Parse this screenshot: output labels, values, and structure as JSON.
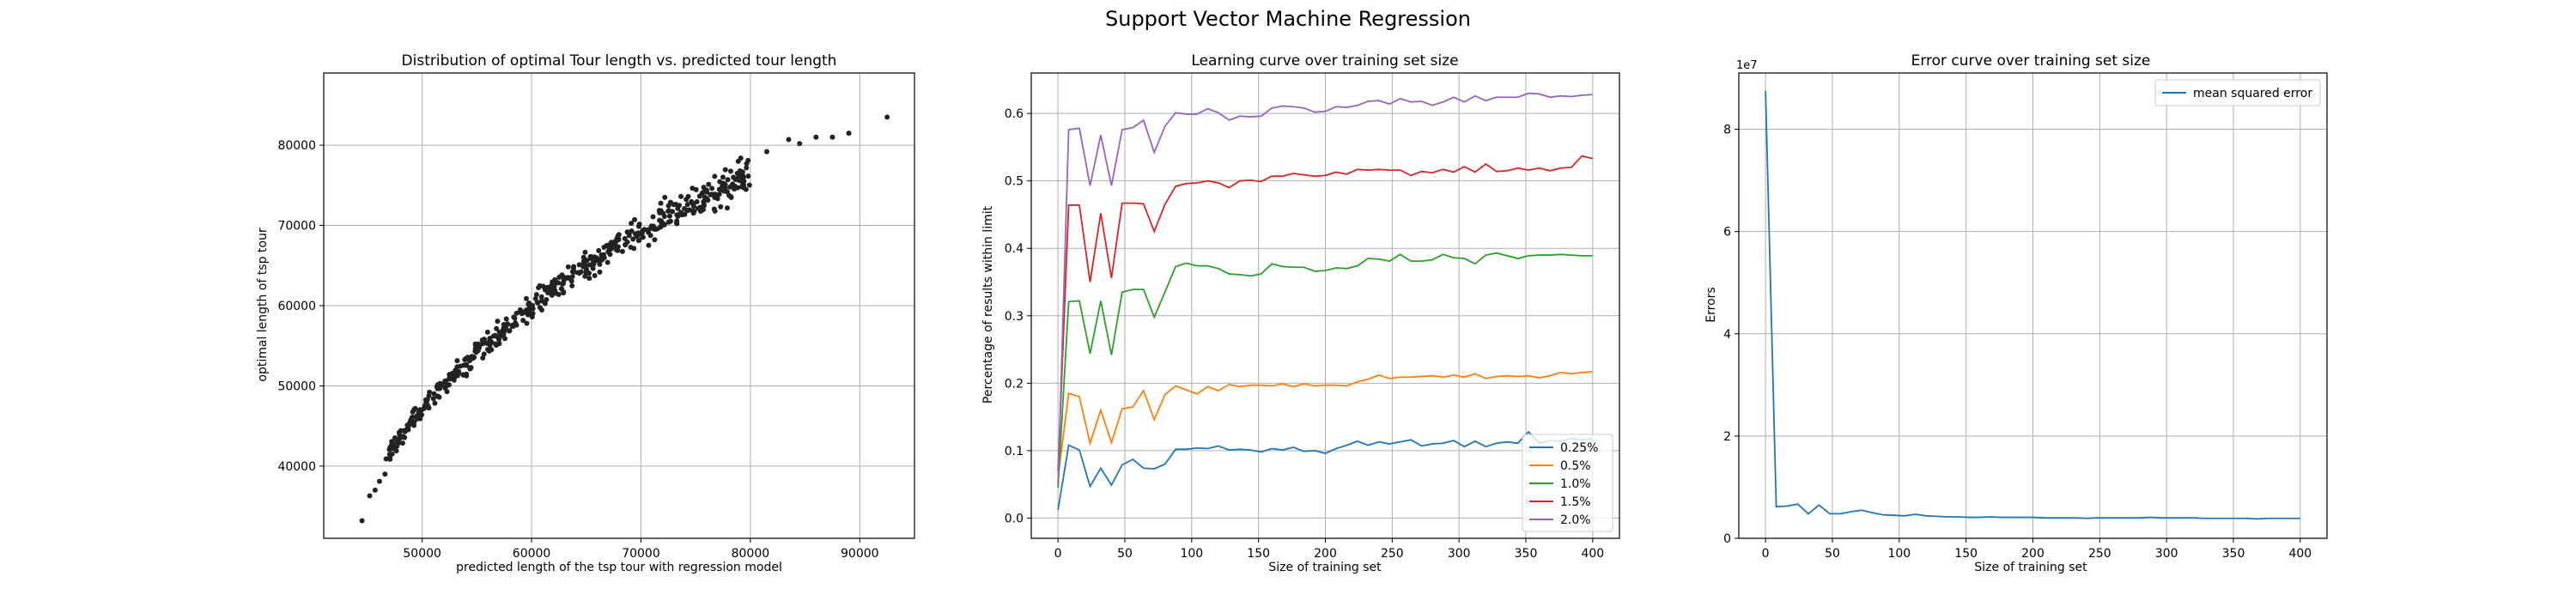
{
  "figure": {
    "title": "Support Vector Machine Regression"
  },
  "colors": {
    "series": [
      "#1f77b4",
      "#ff7f0e",
      "#2ca02c",
      "#d62728",
      "#9467bd"
    ],
    "scatter": "#222222",
    "grid": "#b0b0b0",
    "mse": "#1f77b4"
  },
  "chart_data": [
    {
      "type": "scatter",
      "title": "Distribution of optimal Tour length vs. predicted tour length",
      "xlabel": "predicted length of the tsp tour with regression model",
      "ylabel": "optimal length of tsp tour",
      "xlim": [
        41000,
        95000
      ],
      "ylim": [
        31000,
        89000
      ],
      "xticks": [
        50000,
        60000,
        70000,
        80000,
        90000
      ],
      "yticks": [
        40000,
        50000,
        60000,
        70000,
        80000
      ],
      "grid": true,
      "trend": {
        "x": [
          47000,
          49000,
          52000,
          55000,
          58000,
          60000,
          62000,
          64000,
          66000,
          68000,
          70000,
          72000,
          74000,
          76000,
          78000,
          80000,
          83000,
          86000
        ],
        "y": [
          41800,
          45500,
          50000,
          54000,
          57500,
          59800,
          62100,
          64000,
          65900,
          67500,
          69400,
          71000,
          72600,
          73800,
          75100,
          76300,
          78400,
          80300
        ]
      },
      "extra_points": [
        {
          "x": 44500,
          "y": 33200
        },
        {
          "x": 45200,
          "y": 36300
        },
        {
          "x": 45700,
          "y": 37000
        },
        {
          "x": 46100,
          "y": 38100
        },
        {
          "x": 46600,
          "y": 39000
        },
        {
          "x": 46700,
          "y": 40900
        },
        {
          "x": 81500,
          "y": 79200
        },
        {
          "x": 83500,
          "y": 80700
        },
        {
          "x": 84500,
          "y": 80200
        },
        {
          "x": 86000,
          "y": 81000
        },
        {
          "x": 87500,
          "y": 81000
        },
        {
          "x": 89000,
          "y": 81500
        },
        {
          "x": 92500,
          "y": 83500
        }
      ],
      "n_points": 520
    },
    {
      "type": "line",
      "title": "Learning curve over training set size",
      "xlabel": "Size of training set",
      "ylabel": "Percentage of results within limit",
      "xlim": [
        -20,
        420
      ],
      "ylim": [
        -0.03,
        0.66
      ],
      "xticks": [
        0,
        50,
        100,
        150,
        200,
        250,
        300,
        350,
        400
      ],
      "yticks": [
        0.0,
        0.1,
        0.2,
        0.3,
        0.4,
        0.5,
        0.6
      ],
      "ytick_labels": [
        "0.0",
        "0.1",
        "0.2",
        "0.3",
        "0.4",
        "0.5",
        "0.6"
      ],
      "grid": true,
      "legend": "lower-right",
      "x": [
        0,
        8,
        16,
        24,
        32,
        40,
        48,
        56,
        64,
        72,
        80,
        88,
        96,
        104,
        112,
        120,
        128,
        136,
        144,
        152,
        160,
        168,
        176,
        184,
        192,
        200,
        208,
        216,
        224,
        232,
        240,
        248,
        256,
        264,
        272,
        280,
        288,
        296,
        304,
        312,
        320,
        328,
        336,
        344,
        352,
        360,
        368,
        376,
        384,
        392,
        400
      ],
      "series": [
        {
          "name": "0.25%",
          "values": [
            0.012,
            0.108,
            0.101,
            0.047,
            0.074,
            0.049,
            0.079,
            0.087,
            0.074,
            0.073,
            0.08,
            0.102,
            0.102,
            0.104,
            0.103,
            0.107,
            0.101,
            0.102,
            0.101,
            0.098,
            0.103,
            0.101,
            0.105,
            0.099,
            0.1,
            0.096,
            0.103,
            0.108,
            0.114,
            0.108,
            0.113,
            0.11,
            0.113,
            0.116,
            0.107,
            0.11,
            0.111,
            0.115,
            0.106,
            0.114,
            0.106,
            0.111,
            0.113,
            0.111,
            0.128,
            0.111,
            0.115,
            0.114,
            0.118,
            0.116,
            0.118
          ]
        },
        {
          "name": "0.5%",
          "values": [
            0.06,
            0.185,
            0.18,
            0.111,
            0.16,
            0.112,
            0.162,
            0.165,
            0.189,
            0.146,
            0.183,
            0.196,
            0.19,
            0.184,
            0.195,
            0.189,
            0.198,
            0.195,
            0.197,
            0.197,
            0.196,
            0.199,
            0.195,
            0.199,
            0.196,
            0.197,
            0.197,
            0.196,
            0.202,
            0.206,
            0.212,
            0.207,
            0.209,
            0.209,
            0.21,
            0.211,
            0.209,
            0.212,
            0.209,
            0.214,
            0.207,
            0.21,
            0.211,
            0.21,
            0.211,
            0.208,
            0.211,
            0.216,
            0.214,
            0.216,
            0.217
          ]
        },
        {
          "name": "1.0%",
          "values": [
            0.045,
            0.321,
            0.322,
            0.244,
            0.322,
            0.242,
            0.335,
            0.339,
            0.339,
            0.298,
            0.335,
            0.373,
            0.378,
            0.374,
            0.374,
            0.37,
            0.362,
            0.361,
            0.359,
            0.362,
            0.377,
            0.373,
            0.372,
            0.372,
            0.366,
            0.367,
            0.371,
            0.37,
            0.374,
            0.385,
            0.384,
            0.381,
            0.391,
            0.381,
            0.381,
            0.383,
            0.391,
            0.386,
            0.385,
            0.377,
            0.39,
            0.393,
            0.389,
            0.385,
            0.389,
            0.39,
            0.39,
            0.391,
            0.39,
            0.389,
            0.389
          ]
        },
        {
          "name": "1.5%",
          "values": [
            0.07,
            0.464,
            0.464,
            0.35,
            0.452,
            0.356,
            0.467,
            0.467,
            0.466,
            0.425,
            0.465,
            0.492,
            0.496,
            0.497,
            0.5,
            0.497,
            0.49,
            0.5,
            0.501,
            0.499,
            0.507,
            0.507,
            0.511,
            0.509,
            0.507,
            0.508,
            0.513,
            0.51,
            0.517,
            0.516,
            0.517,
            0.516,
            0.516,
            0.508,
            0.514,
            0.512,
            0.517,
            0.513,
            0.521,
            0.513,
            0.525,
            0.514,
            0.515,
            0.519,
            0.516,
            0.519,
            0.515,
            0.519,
            0.52,
            0.537,
            0.533
          ]
        },
        {
          "name": "2.0%",
          "values": [
            0.05,
            0.576,
            0.578,
            0.493,
            0.568,
            0.493,
            0.576,
            0.579,
            0.59,
            0.542,
            0.581,
            0.601,
            0.599,
            0.599,
            0.607,
            0.601,
            0.59,
            0.596,
            0.595,
            0.596,
            0.608,
            0.611,
            0.61,
            0.608,
            0.602,
            0.603,
            0.61,
            0.609,
            0.612,
            0.618,
            0.619,
            0.614,
            0.622,
            0.617,
            0.618,
            0.612,
            0.617,
            0.624,
            0.617,
            0.626,
            0.619,
            0.624,
            0.624,
            0.624,
            0.63,
            0.629,
            0.624,
            0.626,
            0.625,
            0.627,
            0.628
          ]
        }
      ]
    },
    {
      "type": "line",
      "title": "Error curve over training set size",
      "xlabel": "Size of training set",
      "ylabel": "Errors",
      "scale_label": "1e7",
      "xlim": [
        -20,
        420
      ],
      "ylim": [
        0,
        9.1
      ],
      "xticks": [
        0,
        50,
        100,
        150,
        200,
        250,
        300,
        350,
        400
      ],
      "yticks": [
        0,
        2,
        4,
        6,
        8
      ],
      "ytick_labels": [
        "0",
        "2",
        "4",
        "6",
        "8"
      ],
      "grid": true,
      "legend": "top-right",
      "x": [
        0,
        8,
        16,
        24,
        32,
        40,
        48,
        56,
        64,
        72,
        80,
        88,
        96,
        104,
        112,
        120,
        128,
        136,
        144,
        152,
        160,
        168,
        176,
        184,
        192,
        200,
        208,
        216,
        224,
        232,
        240,
        248,
        256,
        264,
        272,
        280,
        288,
        296,
        304,
        312,
        320,
        328,
        336,
        344,
        352,
        360,
        368,
        376,
        384,
        392,
        400
      ],
      "series": [
        {
          "name": "mean squared error",
          "values": [
            8.75,
            0.62,
            0.63,
            0.67,
            0.48,
            0.65,
            0.48,
            0.48,
            0.52,
            0.55,
            0.5,
            0.46,
            0.45,
            0.44,
            0.47,
            0.44,
            0.43,
            0.42,
            0.42,
            0.41,
            0.41,
            0.42,
            0.41,
            0.41,
            0.41,
            0.41,
            0.4,
            0.4,
            0.4,
            0.4,
            0.39,
            0.4,
            0.4,
            0.4,
            0.4,
            0.4,
            0.41,
            0.4,
            0.4,
            0.4,
            0.4,
            0.39,
            0.39,
            0.39,
            0.39,
            0.39,
            0.38,
            0.39,
            0.39,
            0.39,
            0.39
          ]
        }
      ]
    }
  ]
}
